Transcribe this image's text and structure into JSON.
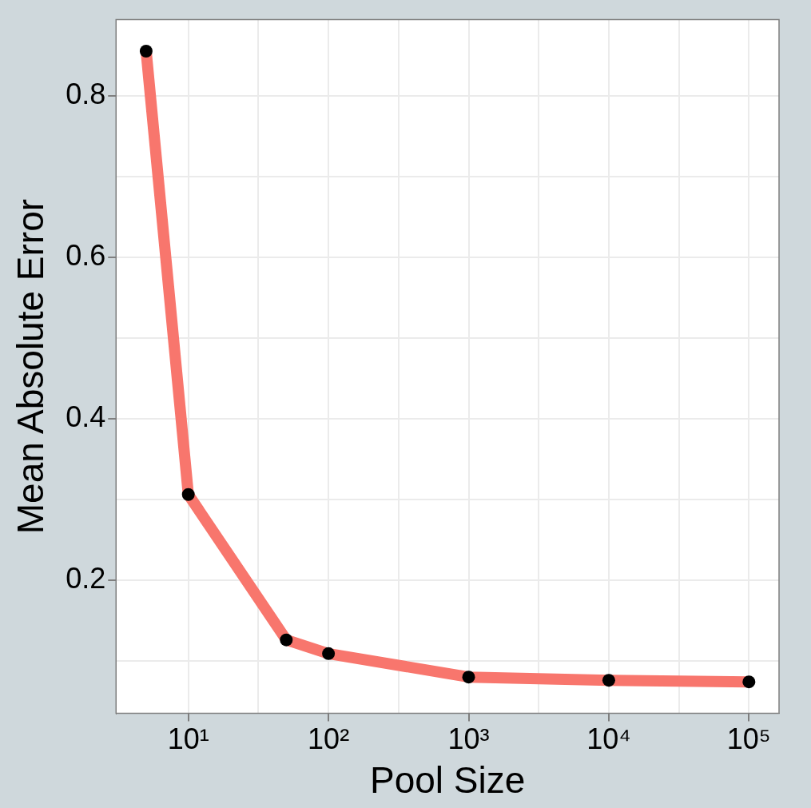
{
  "chart_data": {
    "type": "line",
    "xlabel": "Pool Size",
    "ylabel": "Mean Absolute Error",
    "log": "x",
    "x": [
      5,
      10,
      50,
      100,
      1000,
      10000,
      100000
    ],
    "series": [
      {
        "color": "#f8766d",
        "values": [
          0.855,
          0.306,
          0.126,
          0.109,
          0.08,
          0.076,
          0.074
        ]
      }
    ],
    "xlim": [
      3.05,
      164000
    ],
    "ylim": [
      0.035,
      0.894
    ],
    "xticks": [
      {
        "value": 10,
        "label": "10¹"
      },
      {
        "value": 31.6,
        "label": null
      },
      {
        "value": 100,
        "label": "10²"
      },
      {
        "value": 316,
        "label": null
      },
      {
        "value": 1000,
        "label": "10³"
      },
      {
        "value": 3162,
        "label": null
      },
      {
        "value": 10000,
        "label": "10⁴"
      },
      {
        "value": 31623,
        "label": null
      },
      {
        "value": 100000,
        "label": "10⁵"
      }
    ],
    "yticks": [
      {
        "value": 0.1,
        "label": null
      },
      0.2,
      {
        "value": 0.3,
        "label": null
      },
      0.4,
      {
        "value": 0.5,
        "label": null
      },
      0.6,
      {
        "value": 0.7,
        "label": null
      },
      0.8
    ],
    "grid": true,
    "legend": false,
    "marker": "circle",
    "line_style": "solid"
  }
}
